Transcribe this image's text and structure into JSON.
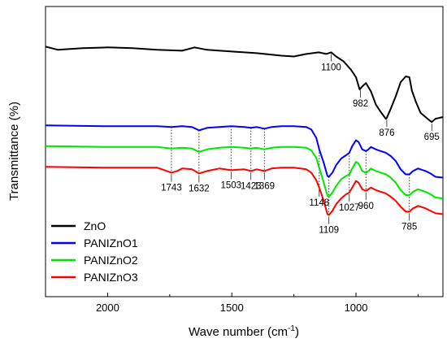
{
  "chart_data": {
    "type": "line",
    "xlabel": "Wave number (cm",
    "xlabel_sup": "-1",
    "xlabel_end": ")",
    "ylabel": "Transmittance (%)",
    "xlim": [
      2250,
      650
    ],
    "x_reversed": true,
    "y_tick_labels": false,
    "x_ticks": [
      2000,
      1500,
      1000
    ],
    "x_tick_labels": [
      "2000",
      "1500",
      "1000"
    ],
    "legend_position": "bottom-left",
    "series": [
      {
        "name": "ZnO",
        "color": "#000000",
        "points": [
          [
            2250,
            128
          ],
          [
            2200,
            124
          ],
          [
            2100,
            126
          ],
          [
            2000,
            127
          ],
          [
            1900,
            126
          ],
          [
            1800,
            124
          ],
          [
            1700,
            123
          ],
          [
            1650,
            127
          ],
          [
            1600,
            124
          ],
          [
            1500,
            122
          ],
          [
            1400,
            120
          ],
          [
            1300,
            117
          ],
          [
            1250,
            116
          ],
          [
            1200,
            119
          ],
          [
            1150,
            121
          ],
          [
            1120,
            119
          ],
          [
            1100,
            121
          ],
          [
            1080,
            116
          ],
          [
            1050,
            110
          ],
          [
            1020,
            100
          ],
          [
            1000,
            91
          ],
          [
            985,
            76
          ],
          [
            975,
            80
          ],
          [
            960,
            84
          ],
          [
            940,
            74
          ],
          [
            920,
            58
          ],
          [
            900,
            49
          ],
          [
            880,
            41
          ],
          [
            876,
            42
          ],
          [
            860,
            53
          ],
          [
            840,
            68
          ],
          [
            820,
            85
          ],
          [
            800,
            92
          ],
          [
            785,
            91
          ],
          [
            775,
            75
          ],
          [
            760,
            62
          ],
          [
            740,
            48
          ],
          [
            720,
            43
          ],
          [
            700,
            38
          ],
          [
            695,
            37
          ],
          [
            680,
            41
          ],
          [
            650,
            43
          ]
        ]
      },
      {
        "name": "PANIZnO1",
        "color": "#0000ff",
        "points": [
          [
            2250,
            33
          ],
          [
            2000,
            32
          ],
          [
            1800,
            32
          ],
          [
            1743,
            31
          ],
          [
            1700,
            32
          ],
          [
            1660,
            31
          ],
          [
            1632,
            27
          ],
          [
            1600,
            30
          ],
          [
            1550,
            31
          ],
          [
            1503,
            32
          ],
          [
            1450,
            31
          ],
          [
            1423,
            30
          ],
          [
            1400,
            31
          ],
          [
            1369,
            29
          ],
          [
            1340,
            31
          ],
          [
            1300,
            32
          ],
          [
            1250,
            32
          ],
          [
            1200,
            31
          ],
          [
            1180,
            28
          ],
          [
            1160,
            18
          ],
          [
            1148,
            4
          ],
          [
            1130,
            -12
          ],
          [
            1115,
            -28
          ],
          [
            1109,
            -29
          ],
          [
            1095,
            -24
          ],
          [
            1080,
            -15
          ],
          [
            1060,
            -7
          ],
          [
            1040,
            -3
          ],
          [
            1027,
            0
          ],
          [
            1015,
            8
          ],
          [
            1000,
            15
          ],
          [
            990,
            13
          ],
          [
            975,
            4
          ],
          [
            960,
            2
          ],
          [
            950,
            4
          ],
          [
            940,
            7
          ],
          [
            920,
            4
          ],
          [
            900,
            2
          ],
          [
            880,
            0
          ],
          [
            860,
            -4
          ],
          [
            840,
            -10
          ],
          [
            820,
            -20
          ],
          [
            800,
            -26
          ],
          [
            785,
            -26
          ],
          [
            770,
            -22
          ],
          [
            750,
            -19
          ],
          [
            720,
            -22
          ],
          [
            700,
            -25
          ],
          [
            680,
            -29
          ],
          [
            650,
            -30
          ]
        ]
      },
      {
        "name": "PANIZnO2",
        "color": "#00e600",
        "points": [
          [
            2250,
            8
          ],
          [
            2000,
            7
          ],
          [
            1800,
            7
          ],
          [
            1743,
            5
          ],
          [
            1700,
            6
          ],
          [
            1660,
            5
          ],
          [
            1632,
            1
          ],
          [
            1600,
            4
          ],
          [
            1550,
            6
          ],
          [
            1503,
            7
          ],
          [
            1450,
            6
          ],
          [
            1423,
            5
          ],
          [
            1400,
            6
          ],
          [
            1369,
            4
          ],
          [
            1340,
            6
          ],
          [
            1300,
            7
          ],
          [
            1250,
            7
          ],
          [
            1200,
            6
          ],
          [
            1180,
            3
          ],
          [
            1160,
            -6
          ],
          [
            1148,
            -18
          ],
          [
            1130,
            -36
          ],
          [
            1115,
            -52
          ],
          [
            1109,
            -53
          ],
          [
            1095,
            -48
          ],
          [
            1080,
            -40
          ],
          [
            1060,
            -32
          ],
          [
            1040,
            -28
          ],
          [
            1027,
            -26
          ],
          [
            1015,
            -19
          ],
          [
            1000,
            -11
          ],
          [
            990,
            -13
          ],
          [
            975,
            -22
          ],
          [
            960,
            -24
          ],
          [
            950,
            -22
          ],
          [
            940,
            -19
          ],
          [
            920,
            -22
          ],
          [
            900,
            -24
          ],
          [
            880,
            -26
          ],
          [
            860,
            -30
          ],
          [
            840,
            -36
          ],
          [
            820,
            -45
          ],
          [
            800,
            -51
          ],
          [
            785,
            -51
          ],
          [
            770,
            -47
          ],
          [
            750,
            -44
          ],
          [
            720,
            -47
          ],
          [
            700,
            -50
          ],
          [
            680,
            -54
          ],
          [
            650,
            -55
          ]
        ]
      },
      {
        "name": "PANIZnO3",
        "color": "#ff0000",
        "points": [
          [
            2250,
            -17
          ],
          [
            2000,
            -18
          ],
          [
            1800,
            -18
          ],
          [
            1743,
            -24
          ],
          [
            1720,
            -22
          ],
          [
            1700,
            -19
          ],
          [
            1660,
            -20
          ],
          [
            1632,
            -25
          ],
          [
            1600,
            -22
          ],
          [
            1550,
            -19
          ],
          [
            1503,
            -21
          ],
          [
            1450,
            -20
          ],
          [
            1423,
            -22
          ],
          [
            1400,
            -20
          ],
          [
            1369,
            -22
          ],
          [
            1340,
            -19
          ],
          [
            1300,
            -18
          ],
          [
            1250,
            -18
          ],
          [
            1200,
            -20
          ],
          [
            1180,
            -24
          ],
          [
            1160,
            -33
          ],
          [
            1148,
            -42
          ],
          [
            1130,
            -58
          ],
          [
            1115,
            -74
          ],
          [
            1109,
            -75
          ],
          [
            1095,
            -70
          ],
          [
            1080,
            -62
          ],
          [
            1060,
            -55
          ],
          [
            1040,
            -50
          ],
          [
            1027,
            -48
          ],
          [
            1015,
            -42
          ],
          [
            1000,
            -34
          ],
          [
            990,
            -36
          ],
          [
            975,
            -44
          ],
          [
            960,
            -46
          ],
          [
            950,
            -44
          ],
          [
            940,
            -42
          ],
          [
            920,
            -45
          ],
          [
            900,
            -47
          ],
          [
            880,
            -49
          ],
          [
            860,
            -53
          ],
          [
            840,
            -58
          ],
          [
            820,
            -65
          ],
          [
            800,
            -71
          ],
          [
            785,
            -71
          ],
          [
            770,
            -67
          ],
          [
            750,
            -64
          ],
          [
            720,
            -67
          ],
          [
            700,
            -70
          ],
          [
            680,
            -73
          ],
          [
            650,
            -74
          ]
        ]
      }
    ],
    "y_data_range": [
      -100,
      140
    ],
    "guide_lines": [
      1743,
      1632,
      1503,
      1423,
      1369,
      1148,
      1109,
      1027,
      960,
      785
    ],
    "annotations": [
      {
        "text": "1100",
        "x": 1100,
        "series": "ZnO"
      },
      {
        "text": "982",
        "x": 982,
        "series": "ZnO"
      },
      {
        "text": "876",
        "x": 876,
        "series": "ZnO"
      },
      {
        "text": "695",
        "x": 695,
        "series": "ZnO"
      },
      {
        "text": "1743",
        "x": 1743,
        "series": "PANIZnO3"
      },
      {
        "text": "1632",
        "x": 1632,
        "series": "PANIZnO3"
      },
      {
        "text": "1503",
        "x": 1503,
        "series": "PANIZnO3"
      },
      {
        "text": "1423",
        "x": 1423,
        "series": "PANIZnO3"
      },
      {
        "text": "1369",
        "x": 1369,
        "series": "PANIZnO3"
      },
      {
        "text": "1148",
        "x": 1148,
        "series": "PANIZnO3"
      },
      {
        "text": "1109",
        "x": 1109,
        "series": "PANIZnO3"
      },
      {
        "text": "1027",
        "x": 1027,
        "series": "PANIZnO3"
      },
      {
        "text": "960",
        "x": 960,
        "series": "PANIZnO3"
      },
      {
        "text": "785",
        "x": 785,
        "series": "PANIZnO3"
      }
    ]
  }
}
